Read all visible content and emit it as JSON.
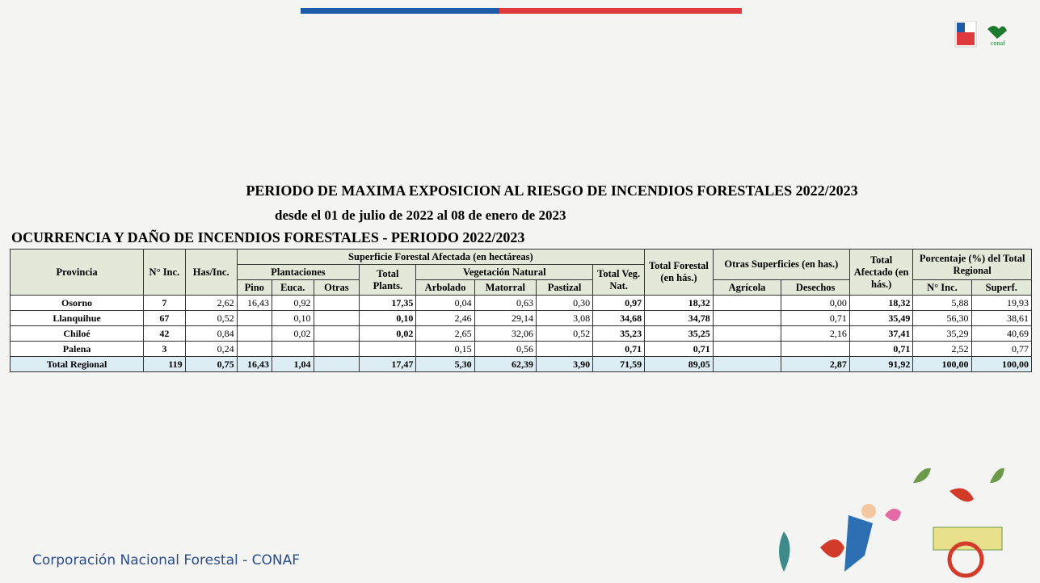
{
  "header": {
    "title": "PERIODO DE MAXIMA EXPOSICION AL RIESGO DE INCENDIOS FORESTALES 2022/2023",
    "subtitle": "desde el 01 de julio de 2022 al 08 de enero de 2023"
  },
  "table": {
    "caption": "OCURRENCIA Y DAÑO DE INCENDIOS FORESTALES - PERIODO 2022/2023",
    "head": {
      "provincia": "Provincia",
      "n_inc": "N° Inc.",
      "has_inc": "Has/Inc.",
      "superficie": "Superficie Forestal Afectada (en hectáreas)",
      "plantaciones": "Plantaciones",
      "pino": "Pino",
      "euca": "Euca.",
      "otras": "Otras",
      "total_plants": "Total Plants.",
      "vegetacion": "Vegetación Natural",
      "arbolado": "Arbolado",
      "matorral": "Matorral",
      "pastizal": "Pastizal",
      "total_veg": "Total Veg. Nat.",
      "total_forestal": "Total Forestal (en hás.)",
      "otras_superficies": "Otras Superficies (en has.)",
      "agricola": "Agrícola",
      "desechos": "Desechos",
      "total_afectado": "Total Afectado (en hás.)",
      "porcentaje": "Porcentaje (%) del Total Regional",
      "pct_inc": "N° Inc.",
      "pct_superf": "Superf."
    },
    "rows": [
      [
        "Osorno",
        "7",
        "2,62",
        "16,43",
        "0,92",
        null,
        "17,35",
        "0,04",
        "0,63",
        "0,30",
        "0,97",
        "18,32",
        null,
        "0,00",
        "18,32",
        "5,88",
        "19,93"
      ],
      [
        "Llanquihue",
        "67",
        "0,52",
        null,
        "0,10",
        null,
        "0,10",
        "2,46",
        "29,14",
        "3,08",
        "34,68",
        "34,78",
        null,
        "0,71",
        "35,49",
        "56,30",
        "38,61"
      ],
      [
        "Chiloé",
        "42",
        "0,84",
        null,
        "0,02",
        null,
        "0,02",
        "2,65",
        "32,06",
        "0,52",
        "35,23",
        "35,25",
        null,
        "2,16",
        "37,41",
        "35,29",
        "40,69"
      ],
      [
        "Palena",
        "3",
        "0,24",
        null,
        null,
        null,
        null,
        "0,15",
        "0,56",
        null,
        "0,71",
        "0,71",
        null,
        null,
        "0,71",
        "2,52",
        "0,77"
      ]
    ],
    "total": [
      "Total Regional",
      "119",
      "0,75",
      "16,43",
      "1,04",
      null,
      "17,47",
      "5,30",
      "62,39",
      "3,90",
      "71,59",
      "89,05",
      null,
      "2,87",
      "91,92",
      "100,00",
      "100,00"
    ]
  },
  "footer": "Corporación Nacional Forestal - CONAF"
}
